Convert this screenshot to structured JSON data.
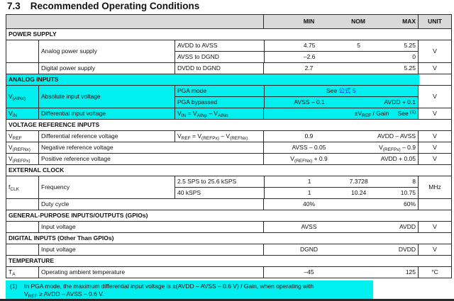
{
  "colors": {
    "highlight": "#00efef",
    "header_bg": "#d9d9d9",
    "link_blue": "#2222ee",
    "border": "#2b2b2b"
  },
  "title": {
    "number": "7.3",
    "text": "Recommended Operating Conditions"
  },
  "header": {
    "min": "MIN",
    "nom": "NOM",
    "max": "MAX",
    "unit": "UNIT"
  },
  "power": {
    "section": "POWER SUPPLY",
    "analog": {
      "param": "Analog power supply",
      "cond1": "AVDD to AVSS",
      "min1": "4.75",
      "nom1": "5",
      "max1": "5.25",
      "cond2": "AVSS to DGND",
      "min2": "–2.6",
      "max2": "0",
      "unit": "V"
    },
    "digital": {
      "param": "Digital power supply",
      "cond": "DVDD to DGND",
      "min": "2.7",
      "max": "5.25",
      "unit": "V"
    }
  },
  "analog_in": {
    "section": "ANALOG INPUTS",
    "abs": {
      "sym": "V",
      "sym_sub": "(AINx)",
      "param": "Absolute input voltage",
      "cond1": "PGA mode",
      "see": "See ",
      "see_link": "公式 5",
      "cond2": "PGA bypassed",
      "min2": "AVSS – 0.1",
      "max2": "AVDD + 0.1",
      "unit": "V"
    },
    "diff": {
      "sym": "V",
      "sym_sub": "IN",
      "param": "Differential input voltage",
      "f1": "V",
      "fs1": "IN",
      "f2": " = V",
      "fs2": "AINp",
      "f3": " – V",
      "fs3": "AINn",
      "val_pre": "±V",
      "val_sub": "REF",
      "val_post": " / Gain",
      "see": "See ",
      "see_sup": "(1)",
      "unit": "V"
    }
  },
  "vref_in": {
    "section": "VOLTAGE REFERENCE INPUTS",
    "diff": {
      "sym": "V",
      "sym_sub": "REF",
      "param": "Differential reference voltage",
      "f1": "V",
      "fs1": "REF",
      "f2": " = V",
      "fs2": "(REFPx)",
      "f3": " – V",
      "fs3": "(REFNx)",
      "min": "0.9",
      "max": "AVDD – AVSS",
      "unit": "V"
    },
    "neg": {
      "sym": "V",
      "sym_sub": "(REFNx)",
      "param": "Negative reference voltage",
      "min": "AVSS – 0.05",
      "max_pre": "V",
      "max_sub": "(REFPx)",
      "max_post": " – 0.9",
      "unit": "V"
    },
    "pos": {
      "sym": "V",
      "sym_sub": "(REFPx)",
      "param": "Positive reference voltage",
      "min_pre": "V",
      "min_sub": "(REFNx)",
      "min_post": " + 0.9",
      "max": "AVDD + 0.05",
      "unit": "V"
    }
  },
  "clock": {
    "section": "EXTERNAL CLOCK",
    "freq": {
      "sym": "f",
      "sym_sub": "CLK",
      "param": "Frequency",
      "cond1": "2.5 SPS to 25.6 kSPS",
      "min1": "1",
      "nom1": "7.3728",
      "max1": "8",
      "cond2": "40 kSPS",
      "min2": "1",
      "nom2": "10.24",
      "max2": "10.75",
      "unit": "MHz"
    },
    "duty": {
      "param": "Duty cycle",
      "min": "40%",
      "max": "60%"
    }
  },
  "gpio": {
    "section": "GENERAL-PURPOSE INPUTS/OUTPUTS (GPIOs)",
    "row": {
      "param": "Input voltage",
      "min": "AVSS",
      "max": "AVDD",
      "unit": "V"
    }
  },
  "digin": {
    "section": "DIGITAL INPUTS (Other Than GPIOs)",
    "row": {
      "param": "Input voltage",
      "min": "DGND",
      "max": "DVDD",
      "unit": "V"
    }
  },
  "temp": {
    "section": "TEMPERATURE",
    "row": {
      "sym": "T",
      "sym_sub": "A",
      "param": "Operating ambient temperature",
      "min": "–45",
      "max": "125",
      "unit": "°C"
    }
  },
  "footnote": {
    "num": "(1)",
    "line1": "In PGA mode, the maximum differential input voltage is ±(AVDD – AVSS – 0.6 V) / Gain, when operating with",
    "line2_pre": "V",
    "line2_sub": "REF",
    "line2_post": " ≥ AVDD – AVSS – 0.6 V."
  }
}
